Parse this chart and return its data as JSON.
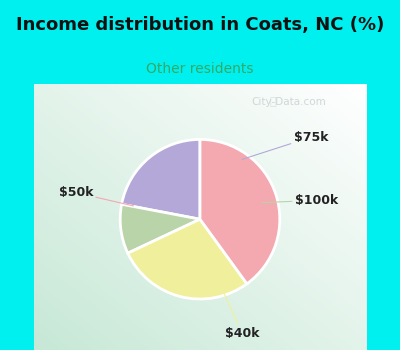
{
  "title": "Income distribution in Coats, NC (%)",
  "subtitle": "Other residents",
  "title_color": "#111111",
  "subtitle_color": "#33aa66",
  "bg_cyan": "#00f0f0",
  "labels": [
    "$75k",
    "$100k",
    "$40k",
    "$50k"
  ],
  "values": [
    22,
    10,
    28,
    40
  ],
  "colors": [
    "#b3a8d8",
    "#b8d4a8",
    "#f0f09c",
    "#f4a8b0"
  ],
  "startangle": 90,
  "edge_color": "white",
  "edge_width": 2.0,
  "watermark": "City-Data.com",
  "watermark_color": "#c0c8c8",
  "label_fontsize": 9,
  "title_fontsize": 13,
  "subtitle_fontsize": 10
}
